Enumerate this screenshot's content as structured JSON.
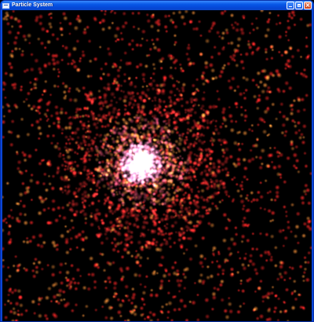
{
  "window": {
    "title": "Particle System",
    "app_icon": "window-icon",
    "buttons": {
      "minimize_icon": "minimize-icon",
      "maximize_icon": "maximize-icon",
      "close_icon": "close-icon"
    }
  },
  "scene": {
    "background": "#000000",
    "particle_color_core": "#ffffff",
    "particle_color_inner": "#ff80b0",
    "particle_color_outer": "#ff2a2a",
    "particle_color_warm": "#ffa030"
  }
}
